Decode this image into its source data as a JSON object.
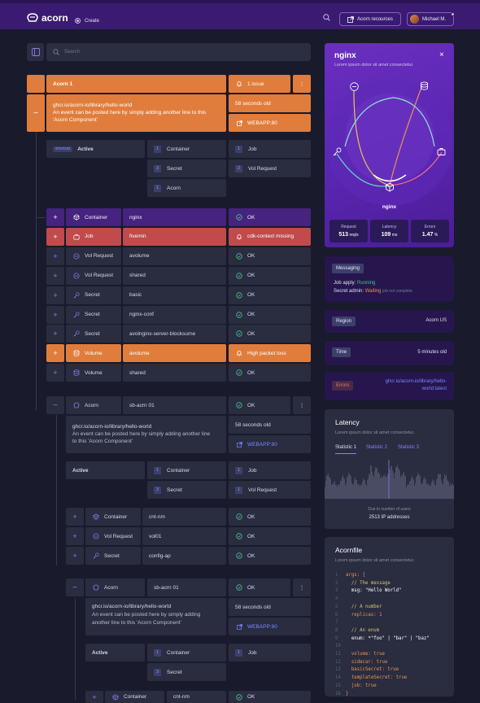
{
  "topbar": {
    "logo": "acorn",
    "create_label": "Create",
    "resources_label": "Acorn recources",
    "user_name": "Michael M."
  },
  "search": {
    "placeholder": "Search"
  },
  "acorn1": {
    "name": "Acorn 1",
    "issues": "1 issue",
    "image": "ghcr.io/acorn-io/library/hello-world",
    "desc_line1": "An event can be posted here by simply adding another line to this",
    "desc_line2": "'Acorn Component'",
    "age": "58 seconds old",
    "endpoint": "WEBAPP:80"
  },
  "status": {
    "tag": "STATUS",
    "value": "Active",
    "c1": "Container",
    "c2": "Secret",
    "c3": "Acorn",
    "c4": "Job",
    "c5": "Vol Request",
    "n1": "1",
    "n2": "3",
    "n3": "1",
    "n4": "1",
    "n5": "2"
  },
  "rows": [
    {
      "type": "Container",
      "name": "nginx",
      "state": "OK"
    },
    {
      "type": "Job",
      "name": "fivemin",
      "state": "cdk-context missing"
    },
    {
      "type": "Vol Request",
      "name": "avolume",
      "state": "OK"
    },
    {
      "type": "Vol Request",
      "name": "shared",
      "state": "OK"
    },
    {
      "type": "Secret",
      "name": "basic",
      "state": "OK"
    },
    {
      "type": "Secret",
      "name": "nginx-conf",
      "state": "OK"
    },
    {
      "type": "Secret",
      "name": "avolnginx-server-blocksurne",
      "state": "OK"
    },
    {
      "type": "Volume",
      "name": "avolume",
      "state": "High packet loss"
    },
    {
      "type": "Volume",
      "name": "shared",
      "state": "OK"
    }
  ],
  "sub1": {
    "type": "Acorn",
    "name": "sb-acrn 01",
    "state": "OK",
    "image": "ghcr.io/acorn-io/library/hello-world",
    "desc_line1": "An event can be posted here by simply adding another line",
    "desc_line2": "to this 'Acorn Component'",
    "age": "58 seconds old",
    "endpoint": "WEBAPP:80",
    "status": "Active",
    "c1": "Container",
    "c2": "Secret",
    "c3": "Job",
    "c4": "Vol Request",
    "n1": "1",
    "n2": "3",
    "n3": "1",
    "n4": "1",
    "rows": [
      {
        "type": "Container",
        "name": "cnt-nm",
        "state": "OK"
      },
      {
        "type": "Vol Request",
        "name": "vol01",
        "state": "OK"
      },
      {
        "type": "Secret",
        "name": "config-ap",
        "state": "OK"
      }
    ]
  },
  "sub2": {
    "type": "Acorn",
    "name": "sb-acrn 01",
    "state": "OK",
    "image": "ghcr.io/acorn-io/library/hello-world",
    "desc_line1": "An event can be posted here by simply adding",
    "desc_line2": "another line to this 'Acorn Component'",
    "age": "58 seconds old",
    "endpoint": "WEBAPP:80",
    "status": "Active",
    "c1": "Container",
    "c2": "Secret",
    "c3": "Job",
    "n1": "1",
    "n2": "3",
    "n3": "1",
    "row": {
      "type": "Container",
      "name": "cnt-nm",
      "state": "OK"
    }
  },
  "nginx_panel": {
    "title": "nginx",
    "subtitle": "Lorem ipsum dolor sit amet consectetur.",
    "center_label": "nginx",
    "request_label": "Request",
    "request_value": "513",
    "request_unit": "req/s",
    "latency_label": "Latency",
    "latency_value": "109",
    "latency_unit": "ms",
    "errors_label": "Errors",
    "errors_value": "1.47",
    "errors_unit": "%"
  },
  "messaging": {
    "tag": "Messaging",
    "job_label": "Job apply:",
    "job_value": "Running",
    "secret_label": "Secret admin:",
    "secret_value": "Waiting",
    "secret_note": "job not complete"
  },
  "region": {
    "tag": "Region",
    "value": "Acorn US"
  },
  "time": {
    "tag": "Time",
    "value": "5 minutes old"
  },
  "errors": {
    "tag": "Errors",
    "value_line1": "ghcr.io/acorn-io/library/hello-",
    "value_line2": "world:latest"
  },
  "latency": {
    "title": "Latency",
    "subtitle": "Lorem ipsum dolor sit amet consectetur.",
    "tab1": "Statistic 1",
    "tab2": "Statistic 2",
    "tab3": "Statistic 3",
    "caption": "Due to number of users",
    "value": "2513 IP addresses"
  },
  "acornfile": {
    "title": "Acornfile",
    "subtitle": "Lorem ipsum dolor sit amet consectetur.",
    "lines": [
      [
        "1",
        "args: {"
      ],
      [
        "2",
        "  // The message"
      ],
      [
        "3",
        "  msg: \"Hello World\""
      ],
      [
        "4",
        ""
      ],
      [
        "5",
        "  // A number"
      ],
      [
        "6",
        "  replicas: 1"
      ],
      [
        "7",
        ""
      ],
      [
        "8",
        "  // An enum"
      ],
      [
        "9",
        "  enum: *\"foo\" | \"bar\" | \"baz\""
      ],
      [
        "10",
        ""
      ],
      [
        "11",
        "  volume: true"
      ],
      [
        "12",
        "  sidecar: true"
      ],
      [
        "13",
        "  basicSecret: true"
      ],
      [
        "14",
        "  templateSecret: true"
      ],
      [
        "15",
        "  job: true"
      ],
      [
        "16",
        "}"
      ]
    ]
  },
  "colors": {
    "topbar": "#3b1b72",
    "orange": "#e07d3c",
    "red": "#c04a4c",
    "purple": "#45237f",
    "ok_green": "#4ac08a",
    "link": "#7c87ff"
  }
}
